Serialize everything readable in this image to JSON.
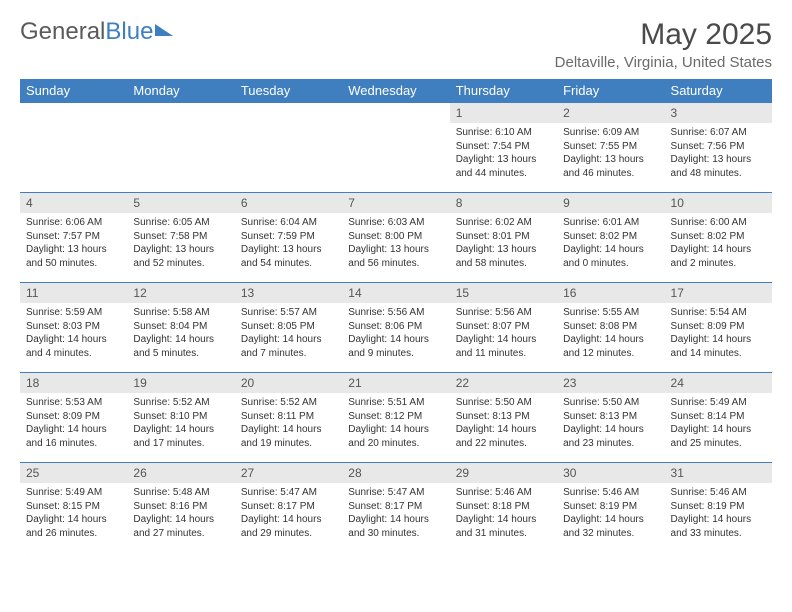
{
  "logo": {
    "part1": "General",
    "part2": "Blue"
  },
  "title": "May 2025",
  "location": "Deltaville, Virginia, United States",
  "header_bg": "#3f7fbf",
  "day_headers": [
    "Sunday",
    "Monday",
    "Tuesday",
    "Wednesday",
    "Thursday",
    "Friday",
    "Saturday"
  ],
  "weeks": [
    [
      null,
      null,
      null,
      null,
      {
        "n": "1",
        "sr": "Sunrise: 6:10 AM",
        "ss": "Sunset: 7:54 PM",
        "dl1": "Daylight: 13 hours",
        "dl2": "and 44 minutes."
      },
      {
        "n": "2",
        "sr": "Sunrise: 6:09 AM",
        "ss": "Sunset: 7:55 PM",
        "dl1": "Daylight: 13 hours",
        "dl2": "and 46 minutes."
      },
      {
        "n": "3",
        "sr": "Sunrise: 6:07 AM",
        "ss": "Sunset: 7:56 PM",
        "dl1": "Daylight: 13 hours",
        "dl2": "and 48 minutes."
      }
    ],
    [
      {
        "n": "4",
        "sr": "Sunrise: 6:06 AM",
        "ss": "Sunset: 7:57 PM",
        "dl1": "Daylight: 13 hours",
        "dl2": "and 50 minutes."
      },
      {
        "n": "5",
        "sr": "Sunrise: 6:05 AM",
        "ss": "Sunset: 7:58 PM",
        "dl1": "Daylight: 13 hours",
        "dl2": "and 52 minutes."
      },
      {
        "n": "6",
        "sr": "Sunrise: 6:04 AM",
        "ss": "Sunset: 7:59 PM",
        "dl1": "Daylight: 13 hours",
        "dl2": "and 54 minutes."
      },
      {
        "n": "7",
        "sr": "Sunrise: 6:03 AM",
        "ss": "Sunset: 8:00 PM",
        "dl1": "Daylight: 13 hours",
        "dl2": "and 56 minutes."
      },
      {
        "n": "8",
        "sr": "Sunrise: 6:02 AM",
        "ss": "Sunset: 8:01 PM",
        "dl1": "Daylight: 13 hours",
        "dl2": "and 58 minutes."
      },
      {
        "n": "9",
        "sr": "Sunrise: 6:01 AM",
        "ss": "Sunset: 8:02 PM",
        "dl1": "Daylight: 14 hours",
        "dl2": "and 0 minutes."
      },
      {
        "n": "10",
        "sr": "Sunrise: 6:00 AM",
        "ss": "Sunset: 8:02 PM",
        "dl1": "Daylight: 14 hours",
        "dl2": "and 2 minutes."
      }
    ],
    [
      {
        "n": "11",
        "sr": "Sunrise: 5:59 AM",
        "ss": "Sunset: 8:03 PM",
        "dl1": "Daylight: 14 hours",
        "dl2": "and 4 minutes."
      },
      {
        "n": "12",
        "sr": "Sunrise: 5:58 AM",
        "ss": "Sunset: 8:04 PM",
        "dl1": "Daylight: 14 hours",
        "dl2": "and 5 minutes."
      },
      {
        "n": "13",
        "sr": "Sunrise: 5:57 AM",
        "ss": "Sunset: 8:05 PM",
        "dl1": "Daylight: 14 hours",
        "dl2": "and 7 minutes."
      },
      {
        "n": "14",
        "sr": "Sunrise: 5:56 AM",
        "ss": "Sunset: 8:06 PM",
        "dl1": "Daylight: 14 hours",
        "dl2": "and 9 minutes."
      },
      {
        "n": "15",
        "sr": "Sunrise: 5:56 AM",
        "ss": "Sunset: 8:07 PM",
        "dl1": "Daylight: 14 hours",
        "dl2": "and 11 minutes."
      },
      {
        "n": "16",
        "sr": "Sunrise: 5:55 AM",
        "ss": "Sunset: 8:08 PM",
        "dl1": "Daylight: 14 hours",
        "dl2": "and 12 minutes."
      },
      {
        "n": "17",
        "sr": "Sunrise: 5:54 AM",
        "ss": "Sunset: 8:09 PM",
        "dl1": "Daylight: 14 hours",
        "dl2": "and 14 minutes."
      }
    ],
    [
      {
        "n": "18",
        "sr": "Sunrise: 5:53 AM",
        "ss": "Sunset: 8:09 PM",
        "dl1": "Daylight: 14 hours",
        "dl2": "and 16 minutes."
      },
      {
        "n": "19",
        "sr": "Sunrise: 5:52 AM",
        "ss": "Sunset: 8:10 PM",
        "dl1": "Daylight: 14 hours",
        "dl2": "and 17 minutes."
      },
      {
        "n": "20",
        "sr": "Sunrise: 5:52 AM",
        "ss": "Sunset: 8:11 PM",
        "dl1": "Daylight: 14 hours",
        "dl2": "and 19 minutes."
      },
      {
        "n": "21",
        "sr": "Sunrise: 5:51 AM",
        "ss": "Sunset: 8:12 PM",
        "dl1": "Daylight: 14 hours",
        "dl2": "and 20 minutes."
      },
      {
        "n": "22",
        "sr": "Sunrise: 5:50 AM",
        "ss": "Sunset: 8:13 PM",
        "dl1": "Daylight: 14 hours",
        "dl2": "and 22 minutes."
      },
      {
        "n": "23",
        "sr": "Sunrise: 5:50 AM",
        "ss": "Sunset: 8:13 PM",
        "dl1": "Daylight: 14 hours",
        "dl2": "and 23 minutes."
      },
      {
        "n": "24",
        "sr": "Sunrise: 5:49 AM",
        "ss": "Sunset: 8:14 PM",
        "dl1": "Daylight: 14 hours",
        "dl2": "and 25 minutes."
      }
    ],
    [
      {
        "n": "25",
        "sr": "Sunrise: 5:49 AM",
        "ss": "Sunset: 8:15 PM",
        "dl1": "Daylight: 14 hours",
        "dl2": "and 26 minutes."
      },
      {
        "n": "26",
        "sr": "Sunrise: 5:48 AM",
        "ss": "Sunset: 8:16 PM",
        "dl1": "Daylight: 14 hours",
        "dl2": "and 27 minutes."
      },
      {
        "n": "27",
        "sr": "Sunrise: 5:47 AM",
        "ss": "Sunset: 8:17 PM",
        "dl1": "Daylight: 14 hours",
        "dl2": "and 29 minutes."
      },
      {
        "n": "28",
        "sr": "Sunrise: 5:47 AM",
        "ss": "Sunset: 8:17 PM",
        "dl1": "Daylight: 14 hours",
        "dl2": "and 30 minutes."
      },
      {
        "n": "29",
        "sr": "Sunrise: 5:46 AM",
        "ss": "Sunset: 8:18 PM",
        "dl1": "Daylight: 14 hours",
        "dl2": "and 31 minutes."
      },
      {
        "n": "30",
        "sr": "Sunrise: 5:46 AM",
        "ss": "Sunset: 8:19 PM",
        "dl1": "Daylight: 14 hours",
        "dl2": "and 32 minutes."
      },
      {
        "n": "31",
        "sr": "Sunrise: 5:46 AM",
        "ss": "Sunset: 8:19 PM",
        "dl1": "Daylight: 14 hours",
        "dl2": "and 33 minutes."
      }
    ]
  ]
}
